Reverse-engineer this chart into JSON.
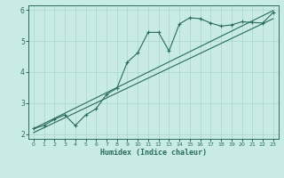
{
  "xlabel": "Humidex (Indice chaleur)",
  "ylabel": "",
  "bg_color": "#c8ebe5",
  "line_color": "#2a6b5e",
  "grid_color": "#a8d5cc",
  "xlim": [
    -0.5,
    23.5
  ],
  "ylim": [
    1.85,
    6.15
  ],
  "xticks": [
    0,
    1,
    2,
    3,
    4,
    5,
    6,
    7,
    8,
    9,
    10,
    11,
    12,
    13,
    14,
    15,
    16,
    17,
    18,
    19,
    20,
    21,
    22,
    23
  ],
  "yticks": [
    2,
    3,
    4,
    5,
    6
  ],
  "main_x": [
    0,
    1,
    2,
    3,
    4,
    5,
    6,
    7,
    8,
    9,
    10,
    11,
    12,
    13,
    14,
    15,
    16,
    17,
    18,
    19,
    20,
    21,
    22,
    23
  ],
  "main_y": [
    2.18,
    2.28,
    2.48,
    2.62,
    2.28,
    2.62,
    2.82,
    3.28,
    3.48,
    4.32,
    4.62,
    5.28,
    5.28,
    4.68,
    5.55,
    5.75,
    5.72,
    5.58,
    5.48,
    5.52,
    5.62,
    5.6,
    5.58,
    5.92
  ],
  "line1_x": [
    0,
    23
  ],
  "line1_y": [
    2.18,
    5.98
  ],
  "line2_x": [
    0,
    23
  ],
  "line2_y": [
    2.05,
    5.72
  ]
}
